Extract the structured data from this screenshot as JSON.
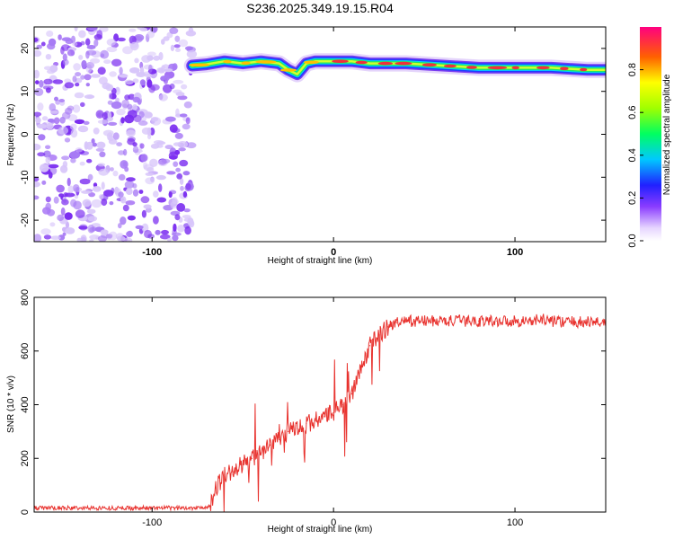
{
  "title": "S236.2025.349.19.15.R04",
  "chart_data": [
    {
      "type": "heatmap",
      "xlabel": "Height of straight line (km)",
      "ylabel": "Frequency (Hz)",
      "xlim": [
        -165,
        150
      ],
      "ylim": [
        -25,
        25
      ],
      "xticks": [
        -100,
        0,
        100
      ],
      "yticks": [
        20,
        10,
        0,
        -10,
        -20
      ],
      "noise_region_x": [
        -165,
        -78
      ],
      "signal_ridge": {
        "x": [
          -78,
          -70,
          -60,
          -50,
          -40,
          -30,
          -25,
          -20,
          -15,
          -10,
          0,
          10,
          20,
          40,
          60,
          80,
          100,
          120,
          140,
          150
        ],
        "freq": [
          16,
          16.3,
          17,
          16.5,
          17,
          16.5,
          15,
          14,
          16.5,
          17,
          17,
          17,
          16.5,
          16.5,
          16,
          15.5,
          15.5,
          15.5,
          15,
          15
        ]
      },
      "colorbar": {
        "label": "Normalized spectral amplitude",
        "ticks": [
          "0.0",
          "0.2",
          "0.4",
          "0.6",
          "0.8"
        ]
      }
    },
    {
      "type": "line",
      "xlabel": "Height of straight line (km)",
      "ylabel": "SNR (10 * v/v)",
      "xlim": [
        -165,
        150
      ],
      "ylim": [
        0,
        800
      ],
      "xticks": [
        -100,
        0,
        100
      ],
      "yticks": [
        0,
        200,
        400,
        600,
        800
      ],
      "series": [
        {
          "color": "#e8322e",
          "x": [
            -165,
            -140,
            -120,
            -100,
            -80,
            -68,
            -65,
            -60,
            -55,
            -50,
            -45,
            -40,
            -35,
            -30,
            -25,
            -20,
            -15,
            -10,
            -5,
            0,
            5,
            10,
            15,
            20,
            25,
            30,
            35,
            40,
            45,
            50,
            60,
            70,
            80,
            90,
            100,
            110,
            115,
            120,
            130,
            140,
            150
          ],
          "y": [
            15,
            15,
            15,
            15,
            15,
            20,
            90,
            140,
            150,
            180,
            200,
            220,
            250,
            270,
            300,
            310,
            330,
            340,
            355,
            370,
            400,
            440,
            530,
            620,
            660,
            690,
            705,
            710,
            712,
            712,
            712,
            712,
            712,
            712,
            712,
            712,
            720,
            712,
            708,
            708,
            708
          ]
        }
      ]
    }
  ]
}
